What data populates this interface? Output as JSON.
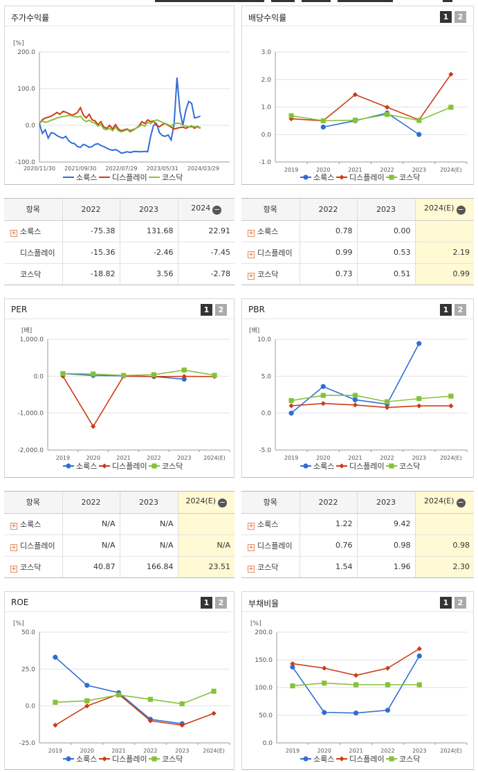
{
  "colors": {
    "blue": "#2f6dd6",
    "red": "#cc3b14",
    "green": "#86c13a",
    "grid": "#e2e2e2",
    "axis": "#999999"
  },
  "legend": [
    "소룩스",
    "디스플레이",
    "코스닥"
  ],
  "toggles": [
    "1",
    "2"
  ],
  "stock_return": {
    "title": "주가수익률",
    "unit": "[%]",
    "chart_data": {
      "type": "line",
      "ylim": [
        -100,
        200
      ],
      "yticks": [
        -100,
        0,
        100,
        200
      ],
      "ytick_labels": [
        "-100.0",
        "0.0",
        "100.0",
        "200.0"
      ],
      "x_labels": [
        "2020/11/30",
        "2021/09/30",
        "2022/07/29",
        "2023/05/31",
        "2024/03/29"
      ],
      "x_label_pos": [
        0,
        14,
        28,
        42,
        56
      ],
      "x_count": 66,
      "series": [
        {
          "name": "소룩스",
          "values": [
            5,
            -22,
            -12,
            -35,
            -20,
            -22,
            -28,
            -32,
            -35,
            -30,
            -42,
            -48,
            -50,
            -58,
            -60,
            -52,
            -55,
            -60,
            -58,
            -52,
            -50,
            -55,
            -58,
            -62,
            -66,
            -68,
            -66,
            -70,
            -76,
            -74,
            -72,
            -74,
            -72,
            -71,
            -72,
            -72,
            -71,
            -72,
            -30,
            0,
            5,
            -20,
            -28,
            -30,
            -26,
            -40,
            2,
            130,
            40,
            0,
            40,
            65,
            60,
            20,
            22,
            25
          ]
        },
        {
          "name": "디스플레이",
          "values": [
            5,
            15,
            20,
            22,
            25,
            30,
            35,
            30,
            38,
            36,
            32,
            28,
            30,
            35,
            48,
            28,
            20,
            30,
            15,
            12,
            2,
            10,
            -5,
            -8,
            0,
            -10,
            2,
            -10,
            -15,
            -12,
            -10,
            -15,
            -12,
            -8,
            -2,
            10,
            5,
            15,
            10,
            12,
            0,
            -4,
            2,
            5,
            0,
            -5,
            -10,
            -8,
            -6,
            -5,
            -8,
            -5,
            -2,
            -8,
            -3,
            -8
          ]
        },
        {
          "name": "코스닥",
          "values": [
            5,
            12,
            8,
            10,
            14,
            16,
            20,
            22,
            24,
            25,
            27,
            26,
            24,
            22,
            25,
            15,
            10,
            14,
            8,
            6,
            -2,
            2,
            -10,
            -12,
            -8,
            -15,
            -5,
            -15,
            -18,
            -15,
            -12,
            -18,
            -14,
            -8,
            -4,
            2,
            -2,
            8,
            5,
            10,
            15,
            12,
            8,
            5,
            2,
            -2,
            4,
            6,
            5,
            0,
            -2,
            -4,
            -5,
            -3,
            -6,
            -5
          ]
        }
      ]
    }
  },
  "stock_table": {
    "header": [
      "항목",
      "2022",
      "2023",
      "2024"
    ],
    "rows": [
      {
        "name": "소룩스",
        "plus": true,
        "values": [
          "-75.38",
          "131.68",
          "22.91"
        ]
      },
      {
        "name": "디스플레이",
        "plus": false,
        "values": [
          "-15.36",
          "-2.46",
          "-7.45"
        ]
      },
      {
        "name": "코스닥",
        "plus": false,
        "values": [
          "-18.82",
          "3.56",
          "-2.78"
        ]
      }
    ]
  },
  "dividend": {
    "title": "배당수익률",
    "chart_data": {
      "type": "line",
      "categories": [
        "2019",
        "2020",
        "2021",
        "2022",
        "2023",
        "2024(E)"
      ],
      "ylim": [
        -1,
        3
      ],
      "yticks": [
        -1,
        0,
        1,
        2,
        3
      ],
      "ytick_labels": [
        "-1.0",
        "0.0",
        "1.0",
        "2.0",
        "3.0"
      ],
      "series": [
        {
          "name": "소룩스",
          "values": [
            null,
            0.27,
            0.5,
            0.78,
            0.0,
            null
          ]
        },
        {
          "name": "디스플레이",
          "values": [
            0.57,
            0.5,
            1.45,
            0.99,
            0.53,
            2.19
          ]
        },
        {
          "name": "코스닥",
          "values": [
            0.68,
            0.5,
            0.52,
            0.73,
            0.51,
            0.99
          ]
        }
      ]
    }
  },
  "dividend_table": {
    "header": [
      "항목",
      "2022",
      "2023",
      "2024(E)"
    ],
    "rows": [
      {
        "name": "소룩스",
        "plus": true,
        "values": [
          "0.78",
          "0.00",
          ""
        ]
      },
      {
        "name": "디스플레이",
        "plus": true,
        "values": [
          "0.99",
          "0.53",
          "2.19"
        ]
      },
      {
        "name": "코스닥",
        "plus": true,
        "values": [
          "0.73",
          "0.51",
          "0.99"
        ]
      }
    ]
  },
  "per": {
    "title": "PER",
    "unit": "[배]",
    "chart_data": {
      "type": "line",
      "categories": [
        "2019",
        "2020",
        "2021",
        "2022",
        "2023",
        "2024(E)"
      ],
      "ylim": [
        -2000,
        1000
      ],
      "yticks": [
        -2000,
        -1000,
        0,
        1000
      ],
      "ytick_labels": [
        "-2,000.0",
        "-1,000.0",
        "0.0",
        "1,000.0"
      ],
      "series": [
        {
          "name": "소룩스",
          "values": [
            70,
            20,
            10,
            -10,
            -80,
            null
          ]
        },
        {
          "name": "디스플레이",
          "values": [
            0,
            -1360,
            0,
            -10,
            -5,
            -10
          ]
        },
        {
          "name": "코스닥",
          "values": [
            70,
            60,
            20,
            40.87,
            166.84,
            23.51
          ]
        }
      ]
    }
  },
  "per_table": {
    "header": [
      "항목",
      "2022",
      "2023",
      "2024(E)"
    ],
    "rows": [
      {
        "name": "소룩스",
        "plus": true,
        "values": [
          "N/A",
          "N/A",
          ""
        ]
      },
      {
        "name": "디스플레이",
        "plus": true,
        "values": [
          "N/A",
          "N/A",
          "N/A"
        ]
      },
      {
        "name": "코스닥",
        "plus": true,
        "values": [
          "40.87",
          "166.84",
          "23.51"
        ]
      }
    ]
  },
  "pbr": {
    "title": "PBR",
    "unit": "[배]",
    "chart_data": {
      "type": "line",
      "categories": [
        "2019",
        "2020",
        "2021",
        "2022",
        "2023",
        "2024(E)"
      ],
      "ylim": [
        -5,
        10
      ],
      "yticks": [
        -5,
        0,
        5,
        10
      ],
      "ytick_labels": [
        "-5.0",
        "0.0",
        "5.0",
        "10.0"
      ],
      "series": [
        {
          "name": "소룩스",
          "values": [
            0.0,
            3.6,
            1.8,
            1.22,
            9.42,
            null
          ]
        },
        {
          "name": "디스플레이",
          "values": [
            1.0,
            1.3,
            1.1,
            0.76,
            0.98,
            0.98
          ]
        },
        {
          "name": "코스닥",
          "values": [
            1.7,
            2.4,
            2.4,
            1.54,
            1.96,
            2.3
          ]
        }
      ]
    }
  },
  "pbr_table": {
    "header": [
      "항목",
      "2022",
      "2023",
      "2024(E)"
    ],
    "rows": [
      {
        "name": "소룩스",
        "plus": true,
        "values": [
          "1.22",
          "9.42",
          ""
        ]
      },
      {
        "name": "디스플레이",
        "plus": true,
        "values": [
          "0.76",
          "0.98",
          "0.98"
        ]
      },
      {
        "name": "코스닥",
        "plus": true,
        "values": [
          "1.54",
          "1.96",
          "2.30"
        ]
      }
    ]
  },
  "roe": {
    "title": "ROE",
    "unit": "[%]",
    "chart_data": {
      "type": "line",
      "categories": [
        "2019",
        "2020",
        "2021",
        "2022",
        "2023",
        "2024(E)"
      ],
      "ylim": [
        -25,
        50
      ],
      "yticks": [
        -25,
        0,
        25,
        50
      ],
      "ytick_labels": [
        "-25.0",
        "0.0",
        "25.0",
        "50.0"
      ],
      "series": [
        {
          "name": "소룩스",
          "values": [
            33,
            14,
            9,
            -9,
            -12,
            null
          ]
        },
        {
          "name": "디스플레이",
          "values": [
            -13,
            0,
            8,
            -10,
            -13,
            -5
          ]
        },
        {
          "name": "코스닥",
          "values": [
            2.5,
            3.5,
            7.5,
            4.5,
            1.5,
            10
          ]
        }
      ]
    }
  },
  "debt": {
    "title": "부채비율",
    "unit": "[%]",
    "chart_data": {
      "type": "line",
      "categories": [
        "2019",
        "2020",
        "2021",
        "2022",
        "2023",
        "2024(E)"
      ],
      "ylim": [
        0,
        200
      ],
      "yticks": [
        0,
        50,
        100,
        150,
        200
      ],
      "ytick_labels": [
        "0.0",
        "50.0",
        "100.0",
        "150.0",
        "200.0"
      ],
      "series": [
        {
          "name": "소룩스",
          "values": [
            137,
            55,
            54,
            59,
            157,
            null
          ]
        },
        {
          "name": "디스플레이",
          "values": [
            143,
            135,
            122,
            135,
            170,
            null
          ]
        },
        {
          "name": "코스닥",
          "values": [
            103,
            108,
            105,
            105,
            105,
            null
          ]
        }
      ]
    }
  }
}
